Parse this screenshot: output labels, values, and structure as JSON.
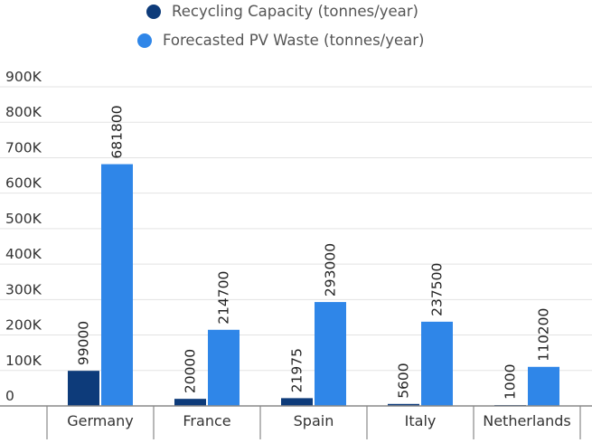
{
  "chart_data": {
    "type": "bar",
    "title": "",
    "xlabel": "",
    "ylabel": "",
    "categories": [
      "Germany",
      "France",
      "Spain",
      "Italy",
      "Netherlands"
    ],
    "series": [
      {
        "name": "Recycling Capacity (tonnes/year)",
        "color": "#0d3b7a",
        "values": [
          99000,
          20000,
          21975,
          5600,
          1000
        ]
      },
      {
        "name": "Forecasted PV Waste (tonnes/year)",
        "color": "#2f86e8",
        "values": [
          681800,
          214700,
          293000,
          237500,
          110200
        ]
      }
    ],
    "ylim": [
      0,
      900000
    ],
    "yticks": [
      0,
      100000,
      200000,
      300000,
      400000,
      500000,
      600000,
      700000,
      800000,
      900000
    ],
    "ytick_labels": [
      "0",
      "100K",
      "200K",
      "300K",
      "400K",
      "500K",
      "600K",
      "700K",
      "800K",
      "900K"
    ],
    "legend_position": "top-center",
    "grid": true,
    "data_labels": true
  }
}
